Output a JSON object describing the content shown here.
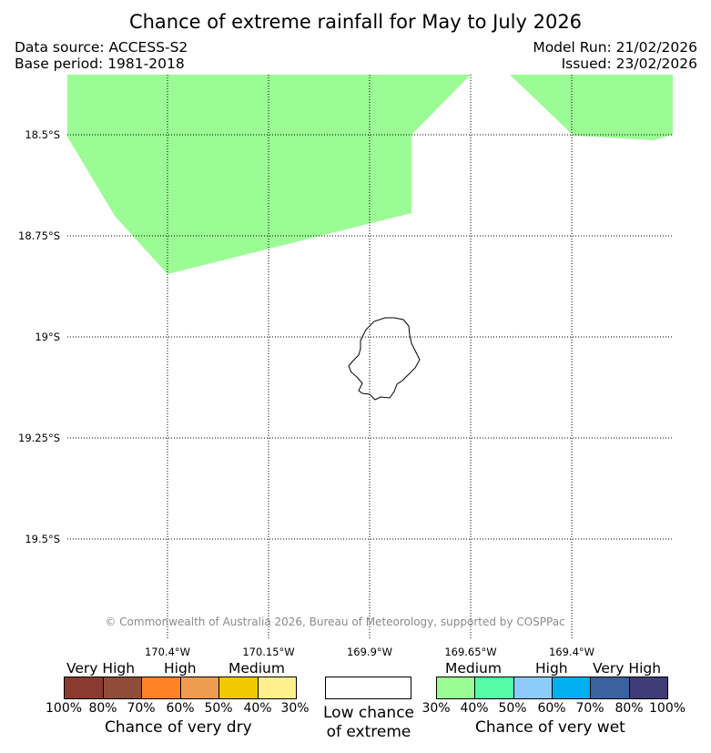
{
  "title": "Chance of extreme rainfall for May to July 2026",
  "data_source": "Data source: ACCESS-S2",
  "base_period": "Base period: 1981-2018",
  "model_run": "Model Run: 21/02/2026",
  "issued": "Issued: 23/02/2026",
  "map": {
    "lat_labels": [
      "18.5°S",
      "18.75°S",
      "19°S",
      "19.25°S",
      "19.5°S"
    ],
    "lon_labels": [
      "170.4°W",
      "170.15°W",
      "169.9°W",
      "169.65°W",
      "169.4°W"
    ],
    "region": "Niue",
    "shaded_category": "Medium chance of very wet (30%-40%)",
    "grid": true,
    "copyright": "© Commonwealth of Australia 2026, Bureau of Meteorology, supported by COSPPac"
  },
  "legend": {
    "dry": {
      "title": "Chance of very dry",
      "categories": [
        "Very High",
        "High",
        "Medium"
      ],
      "colors": [
        "#8b3a2f",
        "#8f4c38",
        "#ff8128",
        "#ee9d50",
        "#f0c800",
        "#fff08e"
      ],
      "percents": [
        "100%",
        "80%",
        "70%",
        "60%",
        "50%",
        "40%",
        "30%"
      ]
    },
    "neutral": {
      "label_line1": "Low chance",
      "label_line2": "of extreme",
      "color": "#ffffff"
    },
    "wet": {
      "title": "Chance of very wet",
      "categories": [
        "Medium",
        "High",
        "Very High"
      ],
      "colors": [
        "#9bfb94",
        "#55fca5",
        "#8ccbfa",
        "#00b0f0",
        "#3b62a0",
        "#3f3c78"
      ],
      "percents": [
        "30%",
        "40%",
        "50%",
        "60%",
        "70%",
        "80%",
        "100%"
      ]
    }
  }
}
